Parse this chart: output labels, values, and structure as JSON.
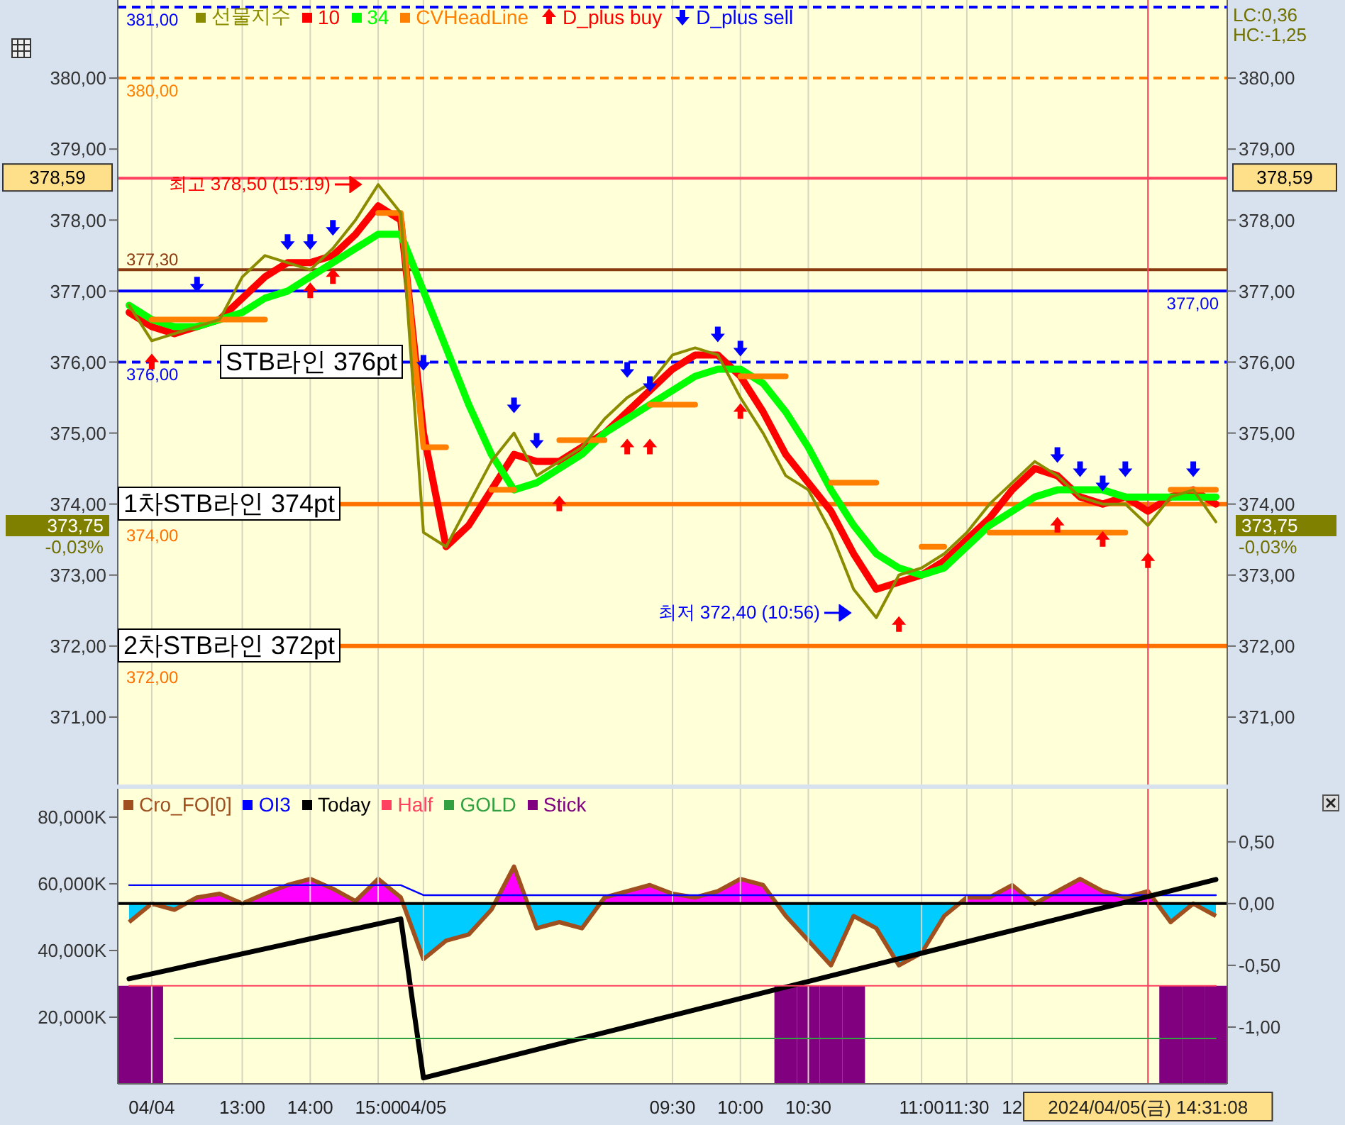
{
  "chart_data": [
    {
      "type": "line",
      "legend": "top left",
      "tick_labels": "y",
      "grid": "x",
      "categories": [
        null,
        "04/04",
        null,
        null,
        null,
        "13:00",
        null,
        null,
        "14:00",
        null,
        null,
        "15:00",
        null,
        "04/05",
        null,
        null,
        null,
        null,
        null,
        null,
        null,
        null,
        null,
        null,
        "09:30",
        null,
        null,
        "10:00",
        null,
        null,
        "10:30",
        null,
        null,
        null,
        null,
        "11:00",
        null,
        "11:30",
        null,
        "12",
        null,
        null,
        null,
        null,
        null,
        "2024/04/05(금) 14:31:08",
        null,
        null,
        null
      ],
      "ylim": [
        370.05,
        381.1
      ],
      "yticks": [
        {
          "value": 371,
          "label": "371,00"
        },
        {
          "value": 372,
          "label": "372,00"
        },
        {
          "value": 373,
          "label": "373,00"
        },
        {
          "value": 374,
          "label": "374,00"
        },
        {
          "value": 375,
          "label": "375,00"
        },
        {
          "value": 376,
          "label": "376,00"
        },
        {
          "value": 377,
          "label": "377,00"
        },
        {
          "value": 378,
          "label": "378,00"
        },
        {
          "value": 379,
          "label": "379,00"
        },
        {
          "value": 380,
          "label": "380,00"
        }
      ],
      "y2lim": [
        370.05,
        381.1
      ],
      "y2ticks": [
        {
          "value": 371,
          "label": "371,00"
        },
        {
          "value": 372,
          "label": "372,00"
        },
        {
          "value": 373,
          "label": "373,00"
        },
        {
          "value": 374,
          "label": "374,00"
        },
        {
          "value": 375,
          "label": "375,00"
        },
        {
          "value": 376,
          "label": "376,00"
        },
        {
          "value": 377,
          "label": "377,00"
        },
        {
          "value": 378,
          "label": "378,00"
        },
        {
          "value": 379,
          "label": "379,00"
        },
        {
          "value": 380,
          "label": "380,00"
        }
      ],
      "series": [
        {
          "name": "선물지수",
          "color": "#8b8b00",
          "values": [
            376.8,
            376.3,
            376.4,
            376.5,
            376.6,
            377.2,
            377.5,
            377.4,
            377.3,
            377.6,
            378.0,
            378.5,
            378.1,
            373.6,
            373.4,
            374.0,
            374.6,
            375.0,
            374.4,
            374.6,
            374.8,
            375.2,
            375.5,
            375.7,
            376.1,
            376.2,
            376.1,
            375.5,
            375.0,
            374.4,
            374.2,
            373.6,
            372.8,
            372.4,
            373.0,
            373.1,
            373.3,
            373.6,
            374.0,
            374.3,
            374.6,
            374.4,
            374.1,
            374.0,
            374.0,
            373.7,
            374.1,
            374.2,
            373.75
          ]
        },
        {
          "name": "10",
          "color": "#ff0000",
          "values": [
            376.7,
            376.5,
            376.4,
            376.5,
            376.6,
            376.9,
            377.2,
            377.4,
            377.4,
            377.5,
            377.8,
            378.2,
            378.0,
            375.0,
            373.4,
            373.7,
            374.2,
            374.7,
            374.6,
            374.6,
            374.8,
            375.0,
            375.3,
            375.6,
            375.9,
            376.1,
            376.1,
            375.8,
            375.3,
            374.7,
            374.3,
            373.9,
            373.3,
            372.8,
            372.9,
            373.0,
            373.2,
            373.5,
            373.8,
            374.2,
            374.5,
            374.4,
            374.1,
            374.0,
            374.1,
            373.9,
            374.1,
            374.2,
            374.0
          ]
        },
        {
          "name": "34",
          "color": "#00ff00",
          "values": [
            376.8,
            376.6,
            376.5,
            376.5,
            376.6,
            376.7,
            376.9,
            377.0,
            377.2,
            377.4,
            377.6,
            377.8,
            377.8,
            377.0,
            376.2,
            375.4,
            374.7,
            374.2,
            374.3,
            374.5,
            374.7,
            375.0,
            375.2,
            375.4,
            375.6,
            375.8,
            375.9,
            375.9,
            375.7,
            375.3,
            374.8,
            374.2,
            373.7,
            373.3,
            373.1,
            373.0,
            373.1,
            373.4,
            373.7,
            373.9,
            374.1,
            374.2,
            374.2,
            374.2,
            374.1,
            374.1,
            374.1,
            374.1,
            374.1
          ]
        },
        {
          "name": "CVHeadLine",
          "color": "#ff8000",
          "values": [
            null,
            376.6,
            376.6,
            376.6,
            376.6,
            376.6,
            376.6,
            null,
            null,
            null,
            null,
            378.1,
            378.1,
            374.8,
            374.8,
            null,
            374.2,
            374.2,
            null,
            374.9,
            374.9,
            374.9,
            null,
            375.4,
            375.4,
            375.4,
            null,
            375.8,
            375.8,
            375.8,
            null,
            374.3,
            374.3,
            374.3,
            null,
            373.4,
            373.4,
            null,
            373.6,
            373.6,
            373.6,
            373.6,
            373.6,
            373.6,
            373.6,
            null,
            374.2,
            374.2,
            374.2
          ]
        },
        {
          "name": "D_plus buy",
          "type": "scatter",
          "marker": "triangle",
          "color": "#ff0000",
          "values": [
            null,
            376.0,
            null,
            null,
            null,
            null,
            null,
            null,
            377.0,
            377.2,
            null,
            null,
            null,
            null,
            null,
            null,
            null,
            null,
            null,
            374.0,
            null,
            null,
            374.8,
            374.8,
            null,
            null,
            null,
            375.3,
            null,
            null,
            null,
            null,
            null,
            null,
            372.3,
            null,
            null,
            null,
            null,
            null,
            null,
            373.7,
            null,
            373.5,
            null,
            373.2,
            null,
            null,
            null
          ]
        },
        {
          "name": "D_plus sell",
          "type": "scatter",
          "marker": "triangle",
          "color": "#0000ff",
          "values": [
            null,
            null,
            null,
            377.1,
            null,
            null,
            null,
            377.7,
            377.7,
            377.9,
            null,
            null,
            null,
            376.0,
            null,
            null,
            null,
            375.4,
            374.9,
            null,
            null,
            null,
            375.9,
            375.7,
            null,
            null,
            376.4,
            376.2,
            null,
            null,
            null,
            null,
            null,
            null,
            null,
            null,
            null,
            null,
            null,
            null,
            null,
            374.7,
            374.5,
            374.3,
            374.5,
            null,
            null,
            374.5,
            null
          ]
        }
      ],
      "ref_lines": [
        {
          "axis": "y",
          "value": 381,
          "label": "381,00",
          "color": "#0000ff",
          "line_style": "dashed"
        },
        {
          "axis": "y",
          "value": 380,
          "label": "380,00",
          "color": "#ff8000",
          "line_style": "dashed"
        },
        {
          "axis": "y",
          "value": 378.59,
          "label": "378,59",
          "color": "#ff4060"
        },
        {
          "axis": "y",
          "value": 377.3,
          "label": "377,30",
          "color": "#8b3a0f"
        },
        {
          "axis": "y",
          "value": 377,
          "label": "377,00",
          "color": "#0000ff"
        },
        {
          "axis": "y",
          "value": 376,
          "label": "376,00",
          "color": "#0000ff",
          "line_style": "dashed"
        },
        {
          "axis": "y",
          "value": 374,
          "label": "374,00",
          "color": "#ff7000"
        },
        {
          "axis": "y",
          "value": 372,
          "label": "372,00",
          "color": "#ff7000"
        },
        {
          "axis": "x",
          "value": "2024/04/05(금) 14:31:08",
          "color": "#ff4060"
        }
      ],
      "annotations": [
        {
          "text": "최고 378,50 (15:19)",
          "y": 378.5
        },
        "최저 372,40 (10:56)",
        {
          "text": "STB라인 376pt",
          "y": 376
        },
        {
          "text": "1차STB라인 374pt",
          "y": 374
        },
        {
          "text": "2차STB라인 372pt",
          "y": 372
        },
        "373,75",
        "-0,03%",
        "LC:0,36",
        "HC:-1,25"
      ]
    },
    {
      "type": "line",
      "legend": "top left",
      "grid": "x",
      "categories": [
        null,
        "04/04",
        null,
        null,
        null,
        "13:00",
        null,
        null,
        "14:00",
        null,
        null,
        "15:00",
        null,
        "04/05",
        null,
        null,
        null,
        null,
        null,
        null,
        null,
        null,
        null,
        null,
        "09:30",
        null,
        null,
        "10:00",
        null,
        null,
        "10:30",
        null,
        null,
        null,
        null,
        "11:00",
        null,
        "11:30",
        null,
        "12",
        null,
        null,
        null,
        null,
        null,
        "2024/04/05(금) 14:31:08",
        null,
        null,
        null
      ],
      "ylim": [
        0,
        88500
      ],
      "yticks": [
        {
          "value": 20000,
          "label": "20,000K"
        },
        {
          "value": 40000,
          "label": "40,000K"
        },
        {
          "value": 60000,
          "label": "60,000K"
        },
        {
          "value": 80000,
          "label": "80,000K"
        }
      ],
      "y2lim": [
        -1.46,
        0.93
      ],
      "y2ticks": [
        {
          "value": -1,
          "label": "-1,00"
        },
        {
          "value": -0.5,
          "label": "-0,50"
        },
        {
          "value": 0,
          "label": "0,00"
        },
        {
          "value": 0.5,
          "label": "0,50"
        }
      ],
      "series": [
        {
          "name": "Cro_FO[0]",
          "type": "area",
          "axis": "y2",
          "color": "#a0501e",
          "values": [
            -0.15,
            0.0,
            -0.05,
            0.05,
            0.08,
            0.0,
            0.08,
            0.15,
            0.2,
            0.12,
            0.02,
            0.2,
            0.05,
            -0.45,
            -0.3,
            -0.25,
            -0.05,
            0.3,
            -0.2,
            -0.15,
            -0.2,
            0.05,
            0.1,
            0.15,
            0.08,
            0.05,
            0.1,
            0.2,
            0.15,
            -0.1,
            -0.3,
            -0.5,
            -0.1,
            -0.2,
            -0.5,
            -0.4,
            -0.1,
            0.05,
            0.05,
            0.15,
            0.0,
            0.1,
            0.2,
            0.1,
            0.05,
            0.1,
            -0.15,
            0.0,
            -0.1
          ]
        },
        {
          "name": "OI3",
          "color": "#0000ff",
          "values": [
            59600,
            59600,
            59600,
            59600,
            59600,
            59600,
            59600,
            59600,
            59600,
            59600,
            59600,
            59600,
            59600,
            56600,
            56600,
            56600,
            56600,
            56600,
            56600,
            56600,
            56600,
            56600,
            56600,
            56600,
            56600,
            56600,
            56600,
            56600,
            56600,
            56600,
            56600,
            56600,
            56600,
            56600,
            56600,
            56600,
            56600,
            56600,
            56600,
            56600,
            56600,
            56600,
            56600,
            56600,
            56600,
            56600,
            56600,
            56600,
            56600
          ]
        },
        {
          "name": "Today",
          "color": "#000000",
          "values": [
            31500,
            33000,
            34500,
            36000,
            37500,
            39000,
            40500,
            42000,
            43500,
            45000,
            46500,
            48000,
            49500,
            1800,
            3500,
            5200,
            6900,
            8600,
            10300,
            12000,
            13700,
            15400,
            17100,
            18800,
            20500,
            22200,
            23900,
            25600,
            27300,
            29000,
            30700,
            32400,
            34100,
            35800,
            37500,
            39200,
            40900,
            42600,
            44300,
            46000,
            47700,
            49400,
            51100,
            52800,
            54500,
            56200,
            57900,
            59600,
            61300
          ]
        },
        {
          "name": "Half",
          "color": "#ff4060",
          "values": [
            29400,
            29400,
            29400,
            29400,
            29400,
            29400,
            29400,
            29400,
            29400,
            29400,
            29400,
            29400,
            29400,
            29400,
            29400,
            29400,
            29400,
            29400,
            29400,
            29400,
            29400,
            29400,
            29400,
            29400,
            29400,
            29400,
            29400,
            29400,
            29400,
            29400,
            29400,
            29400,
            29400,
            29400,
            29400,
            29400,
            29400,
            29400,
            29400,
            29400,
            29400,
            29400,
            29400,
            29400,
            29400,
            29400,
            29400,
            29400,
            29400
          ]
        },
        {
          "name": "GOLD",
          "color": "#30a040",
          "values": [
            null,
            null,
            13600,
            13600,
            13600,
            13600,
            13600,
            13600,
            13600,
            13600,
            13600,
            13600,
            13600,
            13600,
            13600,
            13600,
            13600,
            13600,
            13600,
            13600,
            13600,
            13600,
            13600,
            13600,
            13600,
            13600,
            13600,
            13600,
            13600,
            13600,
            13600,
            13600,
            13600,
            13600,
            13600,
            13600,
            13600,
            13600,
            13600,
            13600,
            13600,
            13600,
            13600,
            13600,
            13600,
            13600,
            13600,
            13600,
            13600
          ]
        },
        {
          "name": "Stick",
          "type": "bar",
          "color": "#800080",
          "values": [
            29400,
            29400,
            null,
            null,
            null,
            null,
            null,
            null,
            null,
            null,
            null,
            null,
            null,
            null,
            null,
            null,
            null,
            null,
            null,
            null,
            null,
            null,
            null,
            null,
            null,
            null,
            null,
            null,
            null,
            29400,
            29400,
            29400,
            29400,
            null,
            null,
            null,
            null,
            null,
            null,
            null,
            null,
            null,
            null,
            null,
            null,
            null,
            29400,
            29400,
            29400
          ]
        }
      ],
      "ref_lines": [
        {
          "axis": "y2",
          "value": 0,
          "color": "#000000"
        },
        {
          "axis": "x",
          "value": "2024/04/05(금) 14:31:08",
          "color": "#ff4060"
        }
      ]
    }
  ]
}
